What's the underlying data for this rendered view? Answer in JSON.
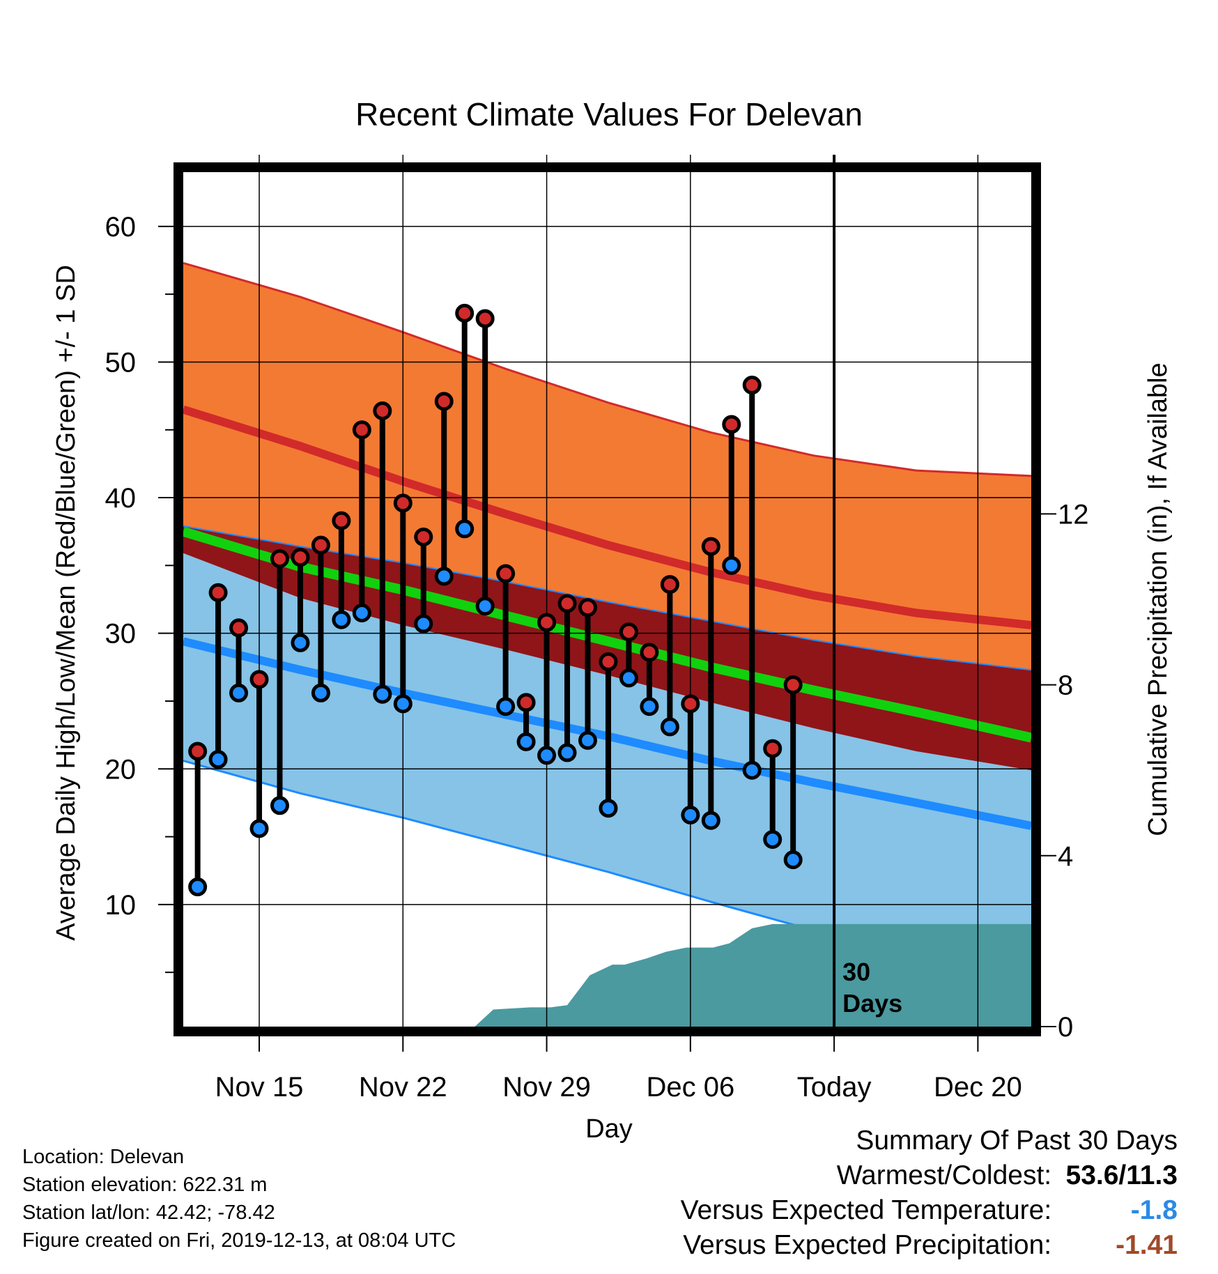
{
  "chart_data": {
    "type": "line",
    "title": "Recent Climate Values For Delevan",
    "xlabel": "Day",
    "ylabel": "Average Daily High/Low/Mean (Red/Blue/Green) +/- 1 SD",
    "y2label": "Cumulative Precipitation (in), If Available",
    "ylim": [
      1,
      64
    ],
    "y2lim": [
      0,
      20
    ],
    "xlim": [
      -0.7,
      40.6
    ],
    "x_ticks": [
      {
        "x": 3,
        "label": "Nov 15"
      },
      {
        "x": 10,
        "label": "Nov 22"
      },
      {
        "x": 17,
        "label": "Nov 29"
      },
      {
        "x": 24,
        "label": "Dec 06"
      },
      {
        "x": 31,
        "label": "Today"
      },
      {
        "x": 38,
        "label": "Dec 20"
      }
    ],
    "y_ticks": [
      10,
      20,
      30,
      40,
      50,
      60
    ],
    "y2_ticks": [
      0,
      4,
      8,
      12
    ],
    "grid": true,
    "today_x": 31,
    "window_label": [
      "30",
      "Days"
    ],
    "expected": {
      "x": [
        -0.7,
        5,
        10,
        15,
        20,
        25,
        30,
        35,
        40.6
      ],
      "high_upper": [
        57.3,
        54.8,
        52.2,
        49.5,
        47.0,
        44.8,
        43.1,
        42.0,
        41.6
      ],
      "high_mean": [
        46.5,
        43.8,
        41.2,
        38.8,
        36.5,
        34.5,
        32.8,
        31.5,
        30.6
      ],
      "high_lower": [
        37.9,
        36.4,
        35.2,
        33.8,
        32.3,
        30.9,
        29.5,
        28.3,
        27.3
      ],
      "mean": [
        37.5,
        34.9,
        33.2,
        31.3,
        29.4,
        27.5,
        25.8,
        24.2,
        22.3
      ],
      "low_upper": [
        35.9,
        32.6,
        30.6,
        28.8,
        26.9,
        24.9,
        23.0,
        21.3,
        19.9
      ],
      "low_mean": [
        29.4,
        27.3,
        25.6,
        24.0,
        22.4,
        20.6,
        19.0,
        17.5,
        15.8
      ],
      "low_lower": [
        20.6,
        18.2,
        16.4,
        14.4,
        12.4,
        10.2,
        8.1,
        6.4,
        5.0
      ]
    },
    "series": [
      {
        "name": "High",
        "color": "#d12a2a",
        "values": [
          21.3,
          33.0,
          30.4,
          26.6,
          35.5,
          35.6,
          36.5,
          38.3,
          45.0,
          46.4,
          39.6,
          37.1,
          47.1,
          53.6,
          53.2,
          34.4,
          24.9,
          30.8,
          32.2,
          31.9,
          27.9,
          30.1,
          28.6,
          33.6,
          24.8,
          36.4,
          45.4,
          48.3,
          21.5,
          26.2
        ]
      },
      {
        "name": "Low",
        "color": "#1e8bff",
        "values": [
          11.3,
          20.7,
          25.6,
          15.6,
          17.3,
          29.3,
          25.6,
          31.0,
          31.5,
          25.5,
          24.8,
          30.7,
          34.2,
          37.7,
          32.0,
          24.6,
          22.0,
          21.0,
          21.2,
          22.1,
          17.1,
          26.7,
          24.6,
          23.1,
          16.6,
          16.2,
          35.0,
          19.9,
          14.8,
          13.3
        ]
      }
    ],
    "precip": {
      "x": [
        -0.7,
        13.5,
        14.4,
        16.2,
        17.2,
        18.0,
        19.1,
        20.2,
        20.8,
        21.9,
        22.8,
        23.8,
        25.1,
        25.9,
        27.0,
        28.0,
        29.0,
        31.0,
        40.6
      ],
      "y": [
        0,
        0,
        0.4,
        0.45,
        0.45,
        0.5,
        1.2,
        1.45,
        1.45,
        1.6,
        1.75,
        1.85,
        1.85,
        1.95,
        2.3,
        2.4,
        2.4,
        2.4,
        2.4
      ]
    },
    "colors": {
      "high_band": "#f37a33",
      "high_line": "#d12a2a",
      "overlap_band": "#8f1519",
      "mean_line": "#11d10e",
      "low_band": "#86c3e7",
      "low_line": "#1e8bff",
      "precip": "#4a9aa0"
    }
  },
  "info": {
    "location": "Location: Delevan",
    "elevation": "Station elevation: 622.31 m",
    "latlon": "Station lat/lon: 42.42; -78.42",
    "created": "Figure created on Fri, 2019-12-13, at 08:04 UTC"
  },
  "summary": {
    "heading": "Summary Of Past 30 Days",
    "warm_cold_label": "Warmest/Coldest:",
    "warm_cold_value": "53.6/11.3",
    "temp_label": "Versus Expected Temperature:",
    "temp_value": "-1.8",
    "temp_color": "#2b8ae6",
    "precip_label": "Versus Expected Precipitation:",
    "precip_value": "-1.41",
    "precip_color": "#a04a2a"
  }
}
